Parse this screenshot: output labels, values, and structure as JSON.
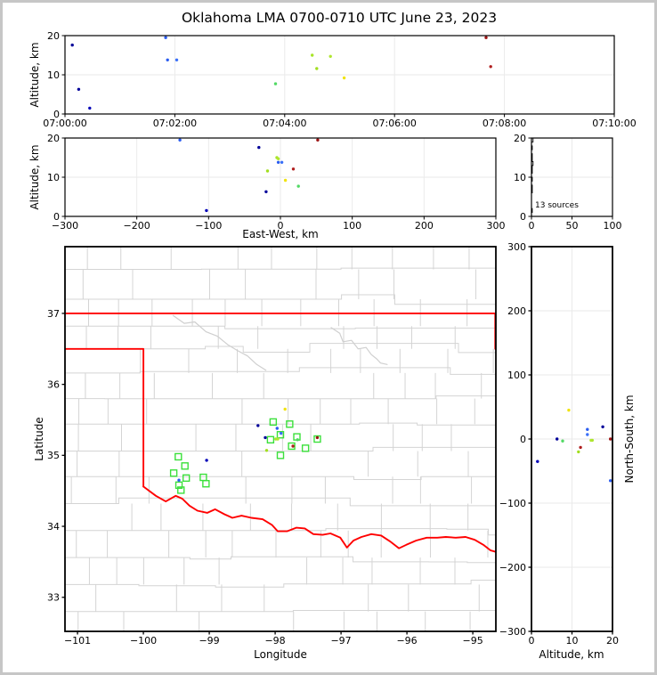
{
  "figure_title": "Oklahoma LMA 0700-0710 UTC June 23, 2023",
  "annotations": {
    "sources_label": "13 sources"
  },
  "axis_labels": {
    "altitude_left_top": "Altitude, km",
    "altitude_left_mid": "Altitude, km",
    "east_west": "East-West, km",
    "longitude": "Longitude",
    "latitude": "Latitude",
    "altitude_bottom_right": "Altitude, km",
    "north_south": "North-South, km"
  },
  "chart_data": {
    "type": "scatter",
    "title": "Oklahoma LMA 0700-0710 UTC June 23, 2023",
    "style": {
      "grid_color": "#eaeaea",
      "county_line_color": "#d4d4d4",
      "river_color": "#cfcfcf",
      "state_border_color": "#ff0000",
      "cg_marker_color": "#3be03b",
      "spine_color": "#000000",
      "histogram_color": "#000000"
    },
    "sources": [
      {
        "time": "07:00:08",
        "t_s": 8,
        "alt_km": 17.6,
        "ew_km": -30,
        "ns_km": 19,
        "lon": -98.26,
        "lat": 35.42,
        "color": "#000099"
      },
      {
        "time": "07:00:15",
        "t_s": 15,
        "alt_km": 6.3,
        "ew_km": -20,
        "ns_km": 0,
        "lon": -98.15,
        "lat": 35.25,
        "color": "#000099"
      },
      {
        "time": "07:00:27",
        "t_s": 27,
        "alt_km": 1.5,
        "ew_km": -103,
        "ns_km": -35,
        "lon": -99.04,
        "lat": 34.93,
        "color": "#0000b8"
      },
      {
        "time": "07:01:50",
        "t_s": 110,
        "alt_km": 19.5,
        "ew_km": -140,
        "ns_km": -65,
        "lon": -99.46,
        "lat": 34.65,
        "color": "#2a5cf0"
      },
      {
        "time": "07:01:52",
        "t_s": 112,
        "alt_km": 13.8,
        "ew_km": -3,
        "ns_km": 15,
        "lon": -97.97,
        "lat": 35.38,
        "color": "#2a5cf0"
      },
      {
        "time": "07:02:02",
        "t_s": 122,
        "alt_km": 13.8,
        "ew_km": 2,
        "ns_km": 7,
        "lon": -97.91,
        "lat": 35.31,
        "color": "#3a70f8"
      },
      {
        "time": "07:03:50",
        "t_s": 230,
        "alt_km": 7.7,
        "ew_km": 25,
        "ns_km": -3,
        "lon": -97.66,
        "lat": 35.22,
        "color": "#52d964"
      },
      {
        "time": "07:04:30",
        "t_s": 270,
        "alt_km": 15.0,
        "ew_km": -5,
        "ns_km": -2,
        "lon": -97.99,
        "lat": 35.23,
        "color": "#a8e428"
      },
      {
        "time": "07:04:35",
        "t_s": 275,
        "alt_km": 11.6,
        "ew_km": -18,
        "ns_km": -20,
        "lon": -98.13,
        "lat": 35.07,
        "color": "#a2de20"
      },
      {
        "time": "07:04:50",
        "t_s": 290,
        "alt_km": 14.7,
        "ew_km": -3,
        "ns_km": -2,
        "lon": -97.96,
        "lat": 35.23,
        "color": "#b0e630"
      },
      {
        "time": "07:05:05",
        "t_s": 305,
        "alt_km": 9.2,
        "ew_km": 7,
        "ns_km": 45,
        "lon": -97.85,
        "lat": 35.65,
        "color": "#f0e312"
      },
      {
        "time": "07:07:40",
        "t_s": 460,
        "alt_km": 19.5,
        "ew_km": 52,
        "ns_km": 0,
        "lon": -97.36,
        "lat": 35.25,
        "color": "#9c1212"
      },
      {
        "time": "07:07:45",
        "t_s": 465,
        "alt_km": 12.1,
        "ew_km": 18,
        "ns_km": -13,
        "lon": -97.73,
        "lat": 35.13,
        "color": "#b01e1e"
      }
    ],
    "cg_strike_squares": [
      [
        -98.03,
        35.47
      ],
      [
        -97.78,
        35.44
      ],
      [
        -98.07,
        35.22
      ],
      [
        -97.92,
        35.29
      ],
      [
        -97.67,
        35.26
      ],
      [
        -97.75,
        35.13
      ],
      [
        -97.54,
        35.1
      ],
      [
        -97.36,
        35.23
      ],
      [
        -97.92,
        35.0
      ],
      [
        -99.47,
        34.98
      ],
      [
        -99.37,
        34.85
      ],
      [
        -99.54,
        34.75
      ],
      [
        -99.35,
        34.68
      ],
      [
        -99.09,
        34.69
      ],
      [
        -99.05,
        34.6
      ],
      [
        -99.46,
        34.58
      ],
      [
        -99.43,
        34.51
      ]
    ],
    "map_layers": {
      "kansas_border": [
        [
          -101.19,
          37.0
        ],
        [
          -94.65,
          37.0
        ]
      ],
      "east_border": [
        [
          -94.66,
          37.0
        ],
        [
          -94.66,
          36.5
        ]
      ],
      "panhandle_border": [
        [
          -101.19,
          36.5
        ],
        [
          -100.0,
          36.5
        ],
        [
          -100.0,
          34.56
        ]
      ],
      "red_river": [
        [
          -100.0,
          34.56
        ],
        [
          -99.81,
          34.43
        ],
        [
          -99.66,
          34.35
        ],
        [
          -99.51,
          34.43
        ],
        [
          -99.41,
          34.39
        ],
        [
          -99.3,
          34.29
        ],
        [
          -99.18,
          34.22
        ],
        [
          -99.03,
          34.19
        ],
        [
          -98.91,
          34.24
        ],
        [
          -98.77,
          34.17
        ],
        [
          -98.65,
          34.12
        ],
        [
          -98.51,
          34.15
        ],
        [
          -98.36,
          34.12
        ],
        [
          -98.19,
          34.1
        ],
        [
          -98.05,
          34.02
        ],
        [
          -97.96,
          33.93
        ],
        [
          -97.82,
          33.93
        ],
        [
          -97.68,
          33.98
        ],
        [
          -97.55,
          33.97
        ],
        [
          -97.42,
          33.89
        ],
        [
          -97.28,
          33.88
        ],
        [
          -97.16,
          33.9
        ],
        [
          -97.01,
          33.84
        ],
        [
          -96.91,
          33.7
        ],
        [
          -96.81,
          33.8
        ],
        [
          -96.69,
          33.85
        ],
        [
          -96.54,
          33.89
        ],
        [
          -96.39,
          33.87
        ],
        [
          -96.26,
          33.79
        ],
        [
          -96.12,
          33.69
        ],
        [
          -96.01,
          33.74
        ],
        [
          -95.86,
          33.8
        ],
        [
          -95.7,
          33.84
        ],
        [
          -95.54,
          33.84
        ],
        [
          -95.41,
          33.85
        ],
        [
          -95.26,
          33.84
        ],
        [
          -95.11,
          33.85
        ],
        [
          -94.97,
          33.81
        ],
        [
          -94.84,
          33.74
        ],
        [
          -94.73,
          33.66
        ],
        [
          -94.65,
          33.64
        ]
      ],
      "rivers": [
        [
          [
            -99.55,
            36.97
          ],
          [
            -99.38,
            36.86
          ],
          [
            -99.22,
            36.88
          ],
          [
            -99.05,
            36.74
          ],
          [
            -98.88,
            36.68
          ],
          [
            -98.72,
            36.56
          ],
          [
            -98.58,
            36.48
          ],
          [
            -98.42,
            36.4
          ],
          [
            -98.28,
            36.28
          ],
          [
            -98.14,
            36.2
          ]
        ],
        [
          [
            -97.15,
            36.8
          ],
          [
            -97.02,
            36.72
          ],
          [
            -96.97,
            36.6
          ],
          [
            -96.84,
            36.62
          ],
          [
            -96.74,
            36.5
          ],
          [
            -96.62,
            36.52
          ],
          [
            -96.54,
            36.42
          ],
          [
            -96.46,
            36.36
          ],
          [
            -96.4,
            36.3
          ],
          [
            -96.3,
            36.28
          ]
        ]
      ]
    },
    "panels": [
      {
        "id": "altitude-vs-time",
        "xlim": [
          0,
          600
        ],
        "ylim": [
          0,
          20
        ],
        "xticks": [
          {
            "v": 0,
            "label": "07:00:00"
          },
          {
            "v": 120,
            "label": "07:02:00"
          },
          {
            "v": 240,
            "label": "07:04:00"
          },
          {
            "v": 360,
            "label": "07:06:00"
          },
          {
            "v": 480,
            "label": "07:08:00"
          },
          {
            "v": 600,
            "label": "07:10:00"
          }
        ],
        "yticks": [
          {
            "v": 0,
            "label": "0"
          },
          {
            "v": 10,
            "label": "10"
          },
          {
            "v": 20,
            "label": "20"
          }
        ],
        "grid_x": [
          120,
          240,
          360,
          480
        ],
        "grid_y": [
          10
        ],
        "points_from": [
          "t_s",
          "alt_km"
        ]
      },
      {
        "id": "altitude-vs-ew",
        "xlim": [
          -300,
          300
        ],
        "ylim": [
          0,
          20
        ],
        "xticks": [
          {
            "v": -300,
            "label": "−300"
          },
          {
            "v": -200,
            "label": "−200"
          },
          {
            "v": -100,
            "label": "−100"
          },
          {
            "v": 0,
            "label": "0"
          },
          {
            "v": 100,
            "label": "100"
          },
          {
            "v": 200,
            "label": "200"
          },
          {
            "v": 300,
            "label": "300"
          }
        ],
        "yticks": [
          {
            "v": 0,
            "label": "0"
          },
          {
            "v": 10,
            "label": "10"
          },
          {
            "v": 20,
            "label": "20"
          }
        ],
        "grid_x": [
          -200,
          -100,
          0,
          100,
          200
        ],
        "grid_y": [
          10
        ],
        "points_from": [
          "ew_km",
          "alt_km"
        ]
      },
      {
        "id": "source-histogram",
        "xlim": [
          0,
          100
        ],
        "ylim": [
          0,
          20
        ],
        "xticks": [
          {
            "v": 0,
            "label": "0"
          },
          {
            "v": 50,
            "label": "50"
          },
          {
            "v": 100,
            "label": "100"
          }
        ],
        "yticks": [
          {
            "v": 0,
            "label": "0"
          },
          {
            "v": 10,
            "label": "10"
          },
          {
            "v": 20,
            "label": "20"
          }
        ],
        "grid_x": [
          50
        ],
        "grid_y": [
          10
        ],
        "histogram_from": "alt_km",
        "bin_km": 1
      },
      {
        "id": "plan-map",
        "xlim": [
          -101.19,
          -94.65
        ],
        "ylim": [
          32.52,
          37.94
        ],
        "xticks": [
          {
            "v": -101,
            "label": "−101"
          },
          {
            "v": -100,
            "label": "−100"
          },
          {
            "v": -99,
            "label": "−99"
          },
          {
            "v": -98,
            "label": "−98"
          },
          {
            "v": -97,
            "label": "−97"
          },
          {
            "v": -96,
            "label": "−96"
          },
          {
            "v": -95,
            "label": "−95"
          }
        ],
        "yticks": [
          {
            "v": 33,
            "label": "33"
          },
          {
            "v": 34,
            "label": "34"
          },
          {
            "v": 35,
            "label": "35"
          },
          {
            "v": 36,
            "label": "36"
          },
          {
            "v": 37,
            "label": "37"
          }
        ],
        "grid_x": [],
        "grid_y": [],
        "points_from": [
          "lon",
          "lat"
        ],
        "is_map": true
      },
      {
        "id": "ns-vs-altitude",
        "xlim": [
          0,
          20
        ],
        "ylim": [
          -300,
          300
        ],
        "xticks": [
          {
            "v": 0,
            "label": "0"
          },
          {
            "v": 10,
            "label": "10"
          },
          {
            "v": 20,
            "label": "20"
          }
        ],
        "yticks": [
          {
            "v": -300,
            "label": "−300"
          },
          {
            "v": -200,
            "label": "−200"
          },
          {
            "v": -100,
            "label": "−100"
          },
          {
            "v": 0,
            "label": "0"
          },
          {
            "v": 100,
            "label": "100"
          },
          {
            "v": 200,
            "label": "200"
          },
          {
            "v": 300,
            "label": "300"
          }
        ],
        "grid_x": [
          10
        ],
        "grid_y": [
          -200,
          -100,
          0,
          100,
          200
        ],
        "points_from": [
          "alt_km",
          "ns_km"
        ]
      }
    ]
  }
}
